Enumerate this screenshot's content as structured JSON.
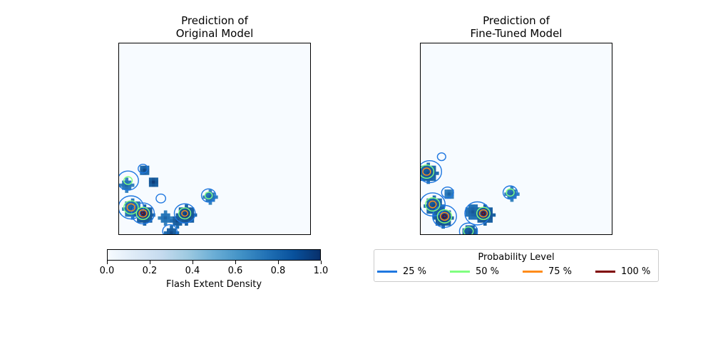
{
  "chart_data": [
    {
      "type": "heatmap",
      "title": "Prediction of\nOriginal Model",
      "title_lines": [
        "Prediction of",
        "Original Model"
      ],
      "colormap": "Blues",
      "value_range": [
        0.0,
        1.0
      ],
      "grid_cells": 64,
      "blobs": [
        {
          "cx": 4,
          "cy": 55,
          "r": 3,
          "v": 0.85
        },
        {
          "cx": 8,
          "cy": 42,
          "r": 1.5,
          "v": 0.9
        },
        {
          "cx": 11,
          "cy": 46,
          "r": 1.5,
          "v": 0.95
        },
        {
          "cx": 2,
          "cy": 47,
          "r": 2,
          "v": 0.8
        },
        {
          "cx": 8,
          "cy": 57,
          "r": 3,
          "v": 0.95
        },
        {
          "cx": 15,
          "cy": 58,
          "r": 2,
          "v": 0.8
        },
        {
          "cx": 19,
          "cy": 59,
          "r": 2,
          "v": 0.9
        },
        {
          "cx": 22,
          "cy": 57,
          "r": 3,
          "v": 0.95
        },
        {
          "cx": 17,
          "cy": 63,
          "r": 2,
          "v": 0.9
        },
        {
          "cx": 30,
          "cy": 51,
          "r": 2,
          "v": 0.8
        }
      ],
      "contours": [
        {
          "level": 0.25,
          "color": "#1f77e0",
          "rings": [
            [
              4,
              55,
              4.2
            ],
            [
              3,
              46,
              3.5
            ],
            [
              8,
              57,
              3.8
            ],
            [
              22,
              57,
              3.5
            ],
            [
              30,
              51,
              2.4
            ],
            [
              14,
              52,
              1.6
            ],
            [
              8,
              42,
              1.6
            ],
            [
              17,
              63,
              2.4
            ]
          ]
        },
        {
          "level": 0.5,
          "color": "#80ff80",
          "rings": [
            [
              4,
              55,
              2.4
            ],
            [
              8,
              57,
              2.2
            ],
            [
              22,
              57,
              2
            ],
            [
              30,
              51,
              1.2
            ],
            [
              3,
              46,
              1.4
            ]
          ]
        },
        {
          "level": 0.75,
          "color": "#ff8c1a",
          "rings": [
            [
              4,
              55,
              1.3
            ],
            [
              8,
              57,
              1.3
            ],
            [
              22,
              57,
              1
            ]
          ]
        },
        {
          "level": 1.0,
          "color": "#7f0000",
          "rings": [
            [
              8,
              57,
              0.5
            ]
          ]
        }
      ]
    },
    {
      "type": "heatmap",
      "title": "Prediction of\nFine-Tuned Model",
      "title_lines": [
        "Prediction of",
        "Fine-Tuned Model"
      ],
      "colormap": "Blues",
      "value_range": [
        0.0,
        1.0
      ],
      "grid_cells": 64,
      "blobs": [
        {
          "cx": 2,
          "cy": 43,
          "r": 3,
          "v": 0.9
        },
        {
          "cx": 4,
          "cy": 54,
          "r": 3,
          "v": 0.9
        },
        {
          "cx": 7,
          "cy": 58,
          "r": 3,
          "v": 0.95
        },
        {
          "cx": 17,
          "cy": 56,
          "r": 2.5,
          "v": 0.85
        },
        {
          "cx": 21,
          "cy": 57,
          "r": 3,
          "v": 0.95
        },
        {
          "cx": 16,
          "cy": 63,
          "r": 2.5,
          "v": 0.9
        },
        {
          "cx": 30,
          "cy": 50,
          "r": 2,
          "v": 0.8
        },
        {
          "cx": 9,
          "cy": 50,
          "r": 1.5,
          "v": 0.8
        }
      ],
      "contours": [
        {
          "level": 0.25,
          "color": "#1f77e0",
          "rings": [
            [
              3,
              43,
              4
            ],
            [
              4,
              54,
              4.2
            ],
            [
              8,
              58,
              4
            ],
            [
              19,
              57,
              4.2
            ],
            [
              30,
              50,
              2.4
            ],
            [
              16,
              63,
              3
            ],
            [
              9,
              50,
              2
            ],
            [
              7,
              38,
              1.4
            ]
          ]
        },
        {
          "level": 0.5,
          "color": "#80ff80",
          "rings": [
            [
              2,
              43,
              2.4
            ],
            [
              4,
              54,
              2.4
            ],
            [
              8,
              58,
              2.4
            ],
            [
              21,
              57,
              2.2
            ],
            [
              16,
              63,
              1.6
            ],
            [
              30,
              50,
              1.3
            ]
          ]
        },
        {
          "level": 0.75,
          "color": "#ff8c1a",
          "rings": [
            [
              2,
              43,
              1.3
            ],
            [
              8,
              58,
              1.4
            ],
            [
              21,
              57,
              1.3
            ],
            [
              4,
              54,
              1.2
            ]
          ]
        },
        {
          "level": 1.0,
          "color": "#7f0000",
          "rings": [
            [
              8,
              58,
              0.6
            ],
            [
              21,
              57,
              0.5
            ]
          ]
        }
      ]
    }
  ],
  "colorbar": {
    "label": "Flash Extent Density",
    "ticks": [
      "0.0",
      "0.2",
      "0.4",
      "0.6",
      "0.8",
      "1.0"
    ],
    "tick_values": [
      0.0,
      0.2,
      0.4,
      0.6,
      0.8,
      1.0
    ]
  },
  "legend": {
    "title": "Probability Level",
    "items": [
      {
        "label": "25 %",
        "color": "#1f77e0"
      },
      {
        "label": "50 %",
        "color": "#80ff80"
      },
      {
        "label": "75 %",
        "color": "#ff8c1a"
      },
      {
        "label": "100 %",
        "color": "#7f0000"
      }
    ]
  }
}
